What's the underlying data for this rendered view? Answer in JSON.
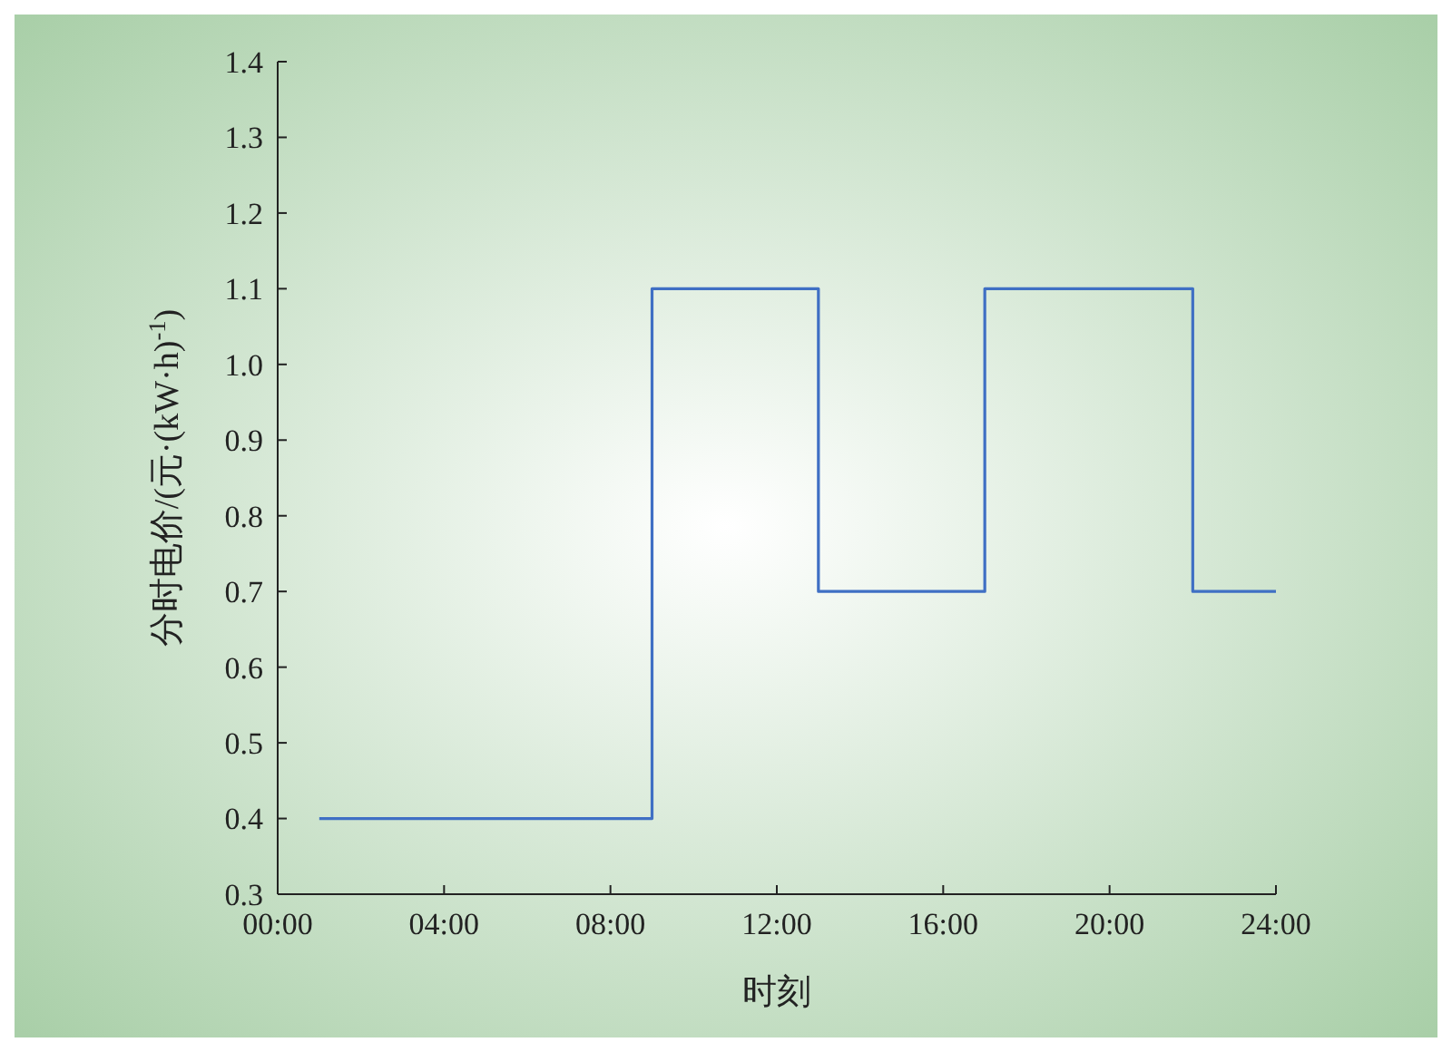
{
  "chart_data": {
    "type": "step",
    "xlabel": "时刻",
    "ylabel": "分时电价/(元·(kW·h)$^{-1}$)",
    "x": [
      1,
      9,
      13,
      17,
      22,
      24
    ],
    "series": [
      {
        "color": "#3f6fc4",
        "values": [
          0.4,
          1.1,
          0.7,
          1.1,
          0.7,
          0.7
        ]
      }
    ],
    "xlim": [
      0,
      24
    ],
    "xticks": [
      {
        "value": 0,
        "label": "00:00"
      },
      {
        "value": 4,
        "label": "04:00"
      },
      {
        "value": 8,
        "label": "08:00"
      },
      {
        "value": 12,
        "label": "12:00"
      },
      {
        "value": 16,
        "label": "16:00"
      },
      {
        "value": 20,
        "label": "20:00"
      },
      {
        "value": 24,
        "label": "24:00"
      }
    ],
    "ylim": [
      0.3,
      1.4
    ],
    "yticks": [
      {
        "value": 0.3,
        "label": "0.3"
      },
      {
        "value": 0.4,
        "label": "0.4"
      },
      {
        "value": 0.5,
        "label": "0.5"
      },
      {
        "value": 0.6,
        "label": "0.6"
      },
      {
        "value": 0.7,
        "label": "0.7"
      },
      {
        "value": 0.8,
        "label": "0.8"
      },
      {
        "value": 0.9,
        "label": "0.9"
      },
      {
        "value": 1.0,
        "label": "1.0"
      },
      {
        "value": 1.1,
        "label": "1.1"
      },
      {
        "value": 1.2,
        "label": "1.2"
      },
      {
        "value": 1.3,
        "label": "1.3"
      },
      {
        "value": 1.4,
        "label": "1.4"
      }
    ],
    "grid": false
  }
}
